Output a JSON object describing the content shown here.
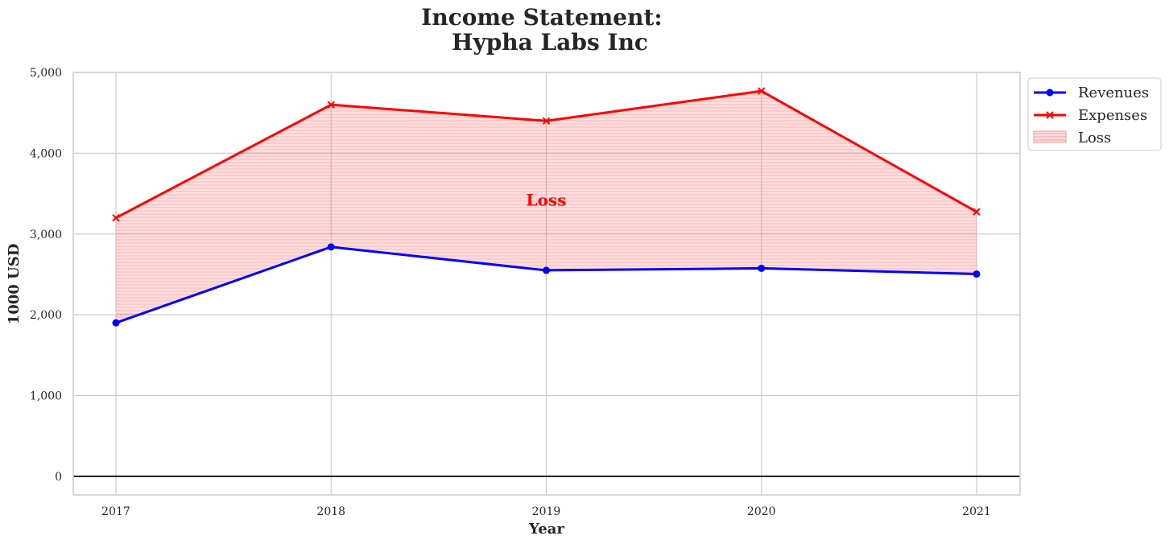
{
  "chart_data": {
    "type": "line",
    "title_line1": "Income Statement:",
    "title_line2": "Hypha Labs Inc",
    "xlabel": "Year",
    "ylabel": "1000 USD",
    "x": [
      "2017",
      "2018",
      "2019",
      "2020",
      "2021"
    ],
    "ylim": [
      -230,
      5000
    ],
    "yticks": [
      0,
      1000,
      2000,
      3000,
      4000,
      5000
    ],
    "ytick_labels": [
      "0",
      "1,000",
      "2,000",
      "3,000",
      "4,000",
      "5,000"
    ],
    "grid": true,
    "legend_position": "outside-top-right",
    "series": [
      {
        "name": "Revenues",
        "values": [
          1900,
          2840,
          2550,
          2575,
          2505
        ],
        "color": "#0000ff",
        "marker": "circle"
      },
      {
        "name": "Expenses",
        "values": [
          3200,
          4600,
          4400,
          4770,
          3275
        ],
        "color": "#ff0000",
        "marker": "x"
      }
    ],
    "fill": {
      "name": "Loss",
      "between": [
        "Revenues",
        "Expenses"
      ],
      "color": "#ff0000"
    },
    "annotation": {
      "text": "Loss",
      "x": "2019",
      "y": 3420,
      "color": "#ff0000"
    }
  }
}
